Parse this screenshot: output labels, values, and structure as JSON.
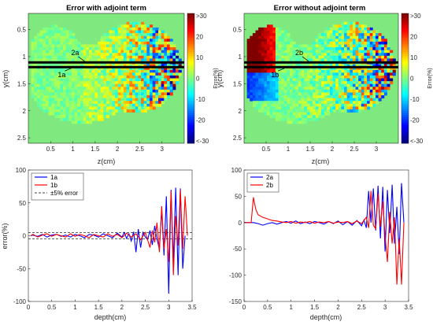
{
  "chart_data": [
    {
      "type": "heatmap",
      "title": "Error with adjoint term",
      "xlabel": "z(cm)",
      "ylabel": "y(cm)",
      "xticks": [
        "0.5",
        "1",
        "1.5",
        "2",
        "2.5",
        "3"
      ],
      "yticks": [
        "0.5",
        "1",
        "1.5",
        "2",
        "2.5"
      ],
      "xlim": [
        0,
        3.5
      ],
      "ylim": [
        0.2,
        2.6
      ],
      "y_reversed": true,
      "background_color": "#7fe87f",
      "line_y": 1.15,
      "annotations": [
        {
          "text": "2a",
          "x": 1.05,
          "y": 0.97
        },
        {
          "text": "1a",
          "x": 0.75,
          "y": 1.38
        }
      ],
      "colorbar": {
        "label": "Error(%)",
        "ticks": [
          ">30",
          "20",
          "10",
          "0",
          "-10",
          "-20",
          "<-30"
        ],
        "range": [
          -30,
          30
        ]
      }
    },
    {
      "type": "heatmap",
      "title": "Error without adjoint term",
      "xlabel": "z(cm)",
      "ylabel": "y(cm)",
      "xticks": [
        "0.5",
        "1",
        "1.5",
        "2",
        "2.5",
        "3"
      ],
      "yticks": [
        "0.5",
        "1",
        "1.5",
        "2",
        "2.5"
      ],
      "xlim": [
        0,
        3.5
      ],
      "ylim": [
        0.2,
        2.6
      ],
      "y_reversed": true,
      "background_color": "#7fe87f",
      "line_y": 1.15,
      "annotations": [
        {
          "text": "2b",
          "x": 1.25,
          "y": 0.97
        },
        {
          "text": "1b",
          "x": 0.7,
          "y": 1.38
        }
      ],
      "colorbar": {
        "label": "Error(%)",
        "ticks": [
          ">30",
          "20",
          "10",
          "0",
          "-10",
          "-20",
          "<-30"
        ],
        "range": [
          -30,
          30
        ]
      }
    },
    {
      "type": "line",
      "xlabel": "depth(cm)",
      "ylabel": "error(%)",
      "xlim": [
        0,
        3.5
      ],
      "ylim": [
        -100,
        100
      ],
      "xticks": [
        "0",
        "0.5",
        "1",
        "1.5",
        "2",
        "2.5",
        "3",
        "3.5"
      ],
      "yticks": [
        "100",
        "50",
        "0",
        "-50",
        "-100"
      ],
      "legend_position": "top-left",
      "reference_lines": {
        "label": "±5% error",
        "values": [
          5,
          -5
        ],
        "color": "#000000",
        "style": "dashed"
      },
      "series": [
        {
          "name": "1a",
          "color": "#0000ff",
          "points": [
            [
              0.05,
              0
            ],
            [
              0.1,
              1
            ],
            [
              0.2,
              -1
            ],
            [
              0.3,
              2
            ],
            [
              0.4,
              -2
            ],
            [
              0.5,
              1
            ],
            [
              0.6,
              2
            ],
            [
              0.7,
              -1
            ],
            [
              0.8,
              1
            ],
            [
              0.9,
              -2
            ],
            [
              1.0,
              2
            ],
            [
              1.1,
              0
            ],
            [
              1.2,
              -3
            ],
            [
              1.3,
              2
            ],
            [
              1.4,
              1
            ],
            [
              1.5,
              -2
            ],
            [
              1.6,
              3
            ],
            [
              1.7,
              0
            ],
            [
              1.8,
              -3
            ],
            [
              1.9,
              4
            ],
            [
              2.0,
              -2
            ],
            [
              2.05,
              5
            ],
            [
              2.1,
              -4
            ],
            [
              2.15,
              3
            ],
            [
              2.2,
              -8
            ],
            [
              2.25,
              6
            ],
            [
              2.3,
              -25
            ],
            [
              2.35,
              10
            ],
            [
              2.4,
              -18
            ],
            [
              2.45,
              5
            ],
            [
              2.5,
              -2
            ],
            [
              2.55,
              -6
            ],
            [
              2.6,
              8
            ],
            [
              2.65,
              -14
            ],
            [
              2.7,
              15
            ],
            [
              2.75,
              -5
            ],
            [
              2.8,
              -20
            ],
            [
              2.85,
              40
            ],
            [
              2.9,
              -30
            ],
            [
              2.95,
              60
            ],
            [
              3.0,
              -88
            ],
            [
              3.05,
              70
            ],
            [
              3.1,
              -40
            ],
            [
              3.15,
              73
            ],
            [
              3.2,
              -60
            ],
            [
              3.25,
              72
            ],
            [
              3.3,
              -50
            ],
            [
              3.35,
              0
            ]
          ]
        },
        {
          "name": "1b",
          "color": "#ff0000",
          "points": [
            [
              0.05,
              0
            ],
            [
              0.1,
              2
            ],
            [
              0.2,
              -2
            ],
            [
              0.3,
              1
            ],
            [
              0.4,
              3
            ],
            [
              0.5,
              -1
            ],
            [
              0.6,
              2
            ],
            [
              0.7,
              0
            ],
            [
              0.8,
              -2
            ],
            [
              0.9,
              3
            ],
            [
              1.0,
              -1
            ],
            [
              1.1,
              2
            ],
            [
              1.2,
              0
            ],
            [
              1.3,
              -3
            ],
            [
              1.4,
              2
            ],
            [
              1.5,
              0
            ],
            [
              1.6,
              -2
            ],
            [
              1.7,
              3
            ],
            [
              1.8,
              -1
            ],
            [
              1.9,
              2
            ],
            [
              2.0,
              -3
            ],
            [
              2.1,
              4
            ],
            [
              2.2,
              -2
            ],
            [
              2.3,
              3
            ],
            [
              2.4,
              -6
            ],
            [
              2.5,
              5
            ],
            [
              2.6,
              -18
            ],
            [
              2.65,
              8
            ],
            [
              2.7,
              -10
            ],
            [
              2.75,
              20
            ],
            [
              2.8,
              -25
            ],
            [
              2.85,
              45
            ],
            [
              2.9,
              -20
            ],
            [
              2.95,
              10
            ],
            [
              3.0,
              -40
            ],
            [
              3.05,
              68
            ],
            [
              3.1,
              -60
            ],
            [
              3.15,
              30
            ],
            [
              3.2,
              -15
            ],
            [
              3.25,
              70
            ],
            [
              3.3,
              -20
            ],
            [
              3.35,
              60
            ],
            [
              3.4,
              0
            ]
          ]
        }
      ]
    },
    {
      "type": "line",
      "xlabel": "depth(cm)",
      "xlim": [
        0,
        3.5
      ],
      "ylim": [
        -150,
        100
      ],
      "xticks": [
        "0",
        "0.5",
        "1",
        "1.5",
        "2",
        "2.5",
        "3",
        "3.5"
      ],
      "yticks": [
        "100",
        "50",
        "0",
        "-50",
        "-100",
        "-150"
      ],
      "legend_position": "top-left",
      "series": [
        {
          "name": "2a",
          "color": "#0000ff",
          "points": [
            [
              0.0,
              0
            ],
            [
              0.1,
              0
            ],
            [
              0.2,
              0
            ],
            [
              0.3,
              -2
            ],
            [
              0.4,
              -5
            ],
            [
              0.5,
              -2
            ],
            [
              0.6,
              0
            ],
            [
              0.7,
              -3
            ],
            [
              0.8,
              0
            ],
            [
              0.9,
              2
            ],
            [
              1.0,
              -1
            ],
            [
              1.1,
              3
            ],
            [
              1.2,
              -2
            ],
            [
              1.3,
              1
            ],
            [
              1.4,
              -2
            ],
            [
              1.5,
              2
            ],
            [
              1.6,
              0
            ],
            [
              1.7,
              -3
            ],
            [
              1.8,
              2
            ],
            [
              1.9,
              -2
            ],
            [
              2.0,
              3
            ],
            [
              2.1,
              -4
            ],
            [
              2.2,
              2
            ],
            [
              2.3,
              -5
            ],
            [
              2.4,
              4
            ],
            [
              2.5,
              -6
            ],
            [
              2.55,
              5
            ],
            [
              2.6,
              -10
            ],
            [
              2.65,
              60
            ],
            [
              2.7,
              0
            ],
            [
              2.75,
              65
            ],
            [
              2.8,
              -15
            ],
            [
              2.85,
              70
            ],
            [
              2.9,
              -30
            ],
            [
              2.95,
              68
            ],
            [
              3.0,
              -55
            ],
            [
              3.05,
              62
            ],
            [
              3.1,
              -20
            ],
            [
              3.15,
              72
            ],
            [
              3.2,
              -40
            ],
            [
              3.25,
              30
            ],
            [
              3.3,
              -60
            ],
            [
              3.35,
              75
            ],
            [
              3.4,
              0
            ]
          ]
        },
        {
          "name": "2b",
          "color": "#ff0000",
          "points": [
            [
              0.0,
              0
            ],
            [
              0.15,
              0
            ],
            [
              0.2,
              48
            ],
            [
              0.25,
              25
            ],
            [
              0.3,
              15
            ],
            [
              0.4,
              10
            ],
            [
              0.5,
              7
            ],
            [
              0.6,
              4
            ],
            [
              0.7,
              3
            ],
            [
              0.8,
              1
            ],
            [
              0.9,
              0
            ],
            [
              1.0,
              2
            ],
            [
              1.1,
              -1
            ],
            [
              1.2,
              1
            ],
            [
              1.3,
              0
            ],
            [
              1.4,
              2
            ],
            [
              1.5,
              -1
            ],
            [
              1.6,
              1
            ],
            [
              1.7,
              0
            ],
            [
              1.8,
              2
            ],
            [
              1.9,
              -1
            ],
            [
              2.0,
              1
            ],
            [
              2.1,
              0
            ],
            [
              2.2,
              2
            ],
            [
              2.3,
              -2
            ],
            [
              2.4,
              3
            ],
            [
              2.5,
              -2
            ],
            [
              2.6,
              10
            ],
            [
              2.65,
              -10
            ],
            [
              2.7,
              60
            ],
            [
              2.75,
              -5
            ],
            [
              2.8,
              -12
            ],
            [
              2.85,
              55
            ],
            [
              2.9,
              -8
            ],
            [
              2.95,
              40
            ],
            [
              3.0,
              -25
            ],
            [
              3.05,
              -75
            ],
            [
              3.1,
              20
            ],
            [
              3.15,
              -40
            ],
            [
              3.2,
              10
            ],
            [
              3.25,
              -118
            ],
            [
              3.3,
              -30
            ],
            [
              3.35,
              -118
            ],
            [
              3.4,
              0
            ]
          ]
        }
      ]
    }
  ]
}
